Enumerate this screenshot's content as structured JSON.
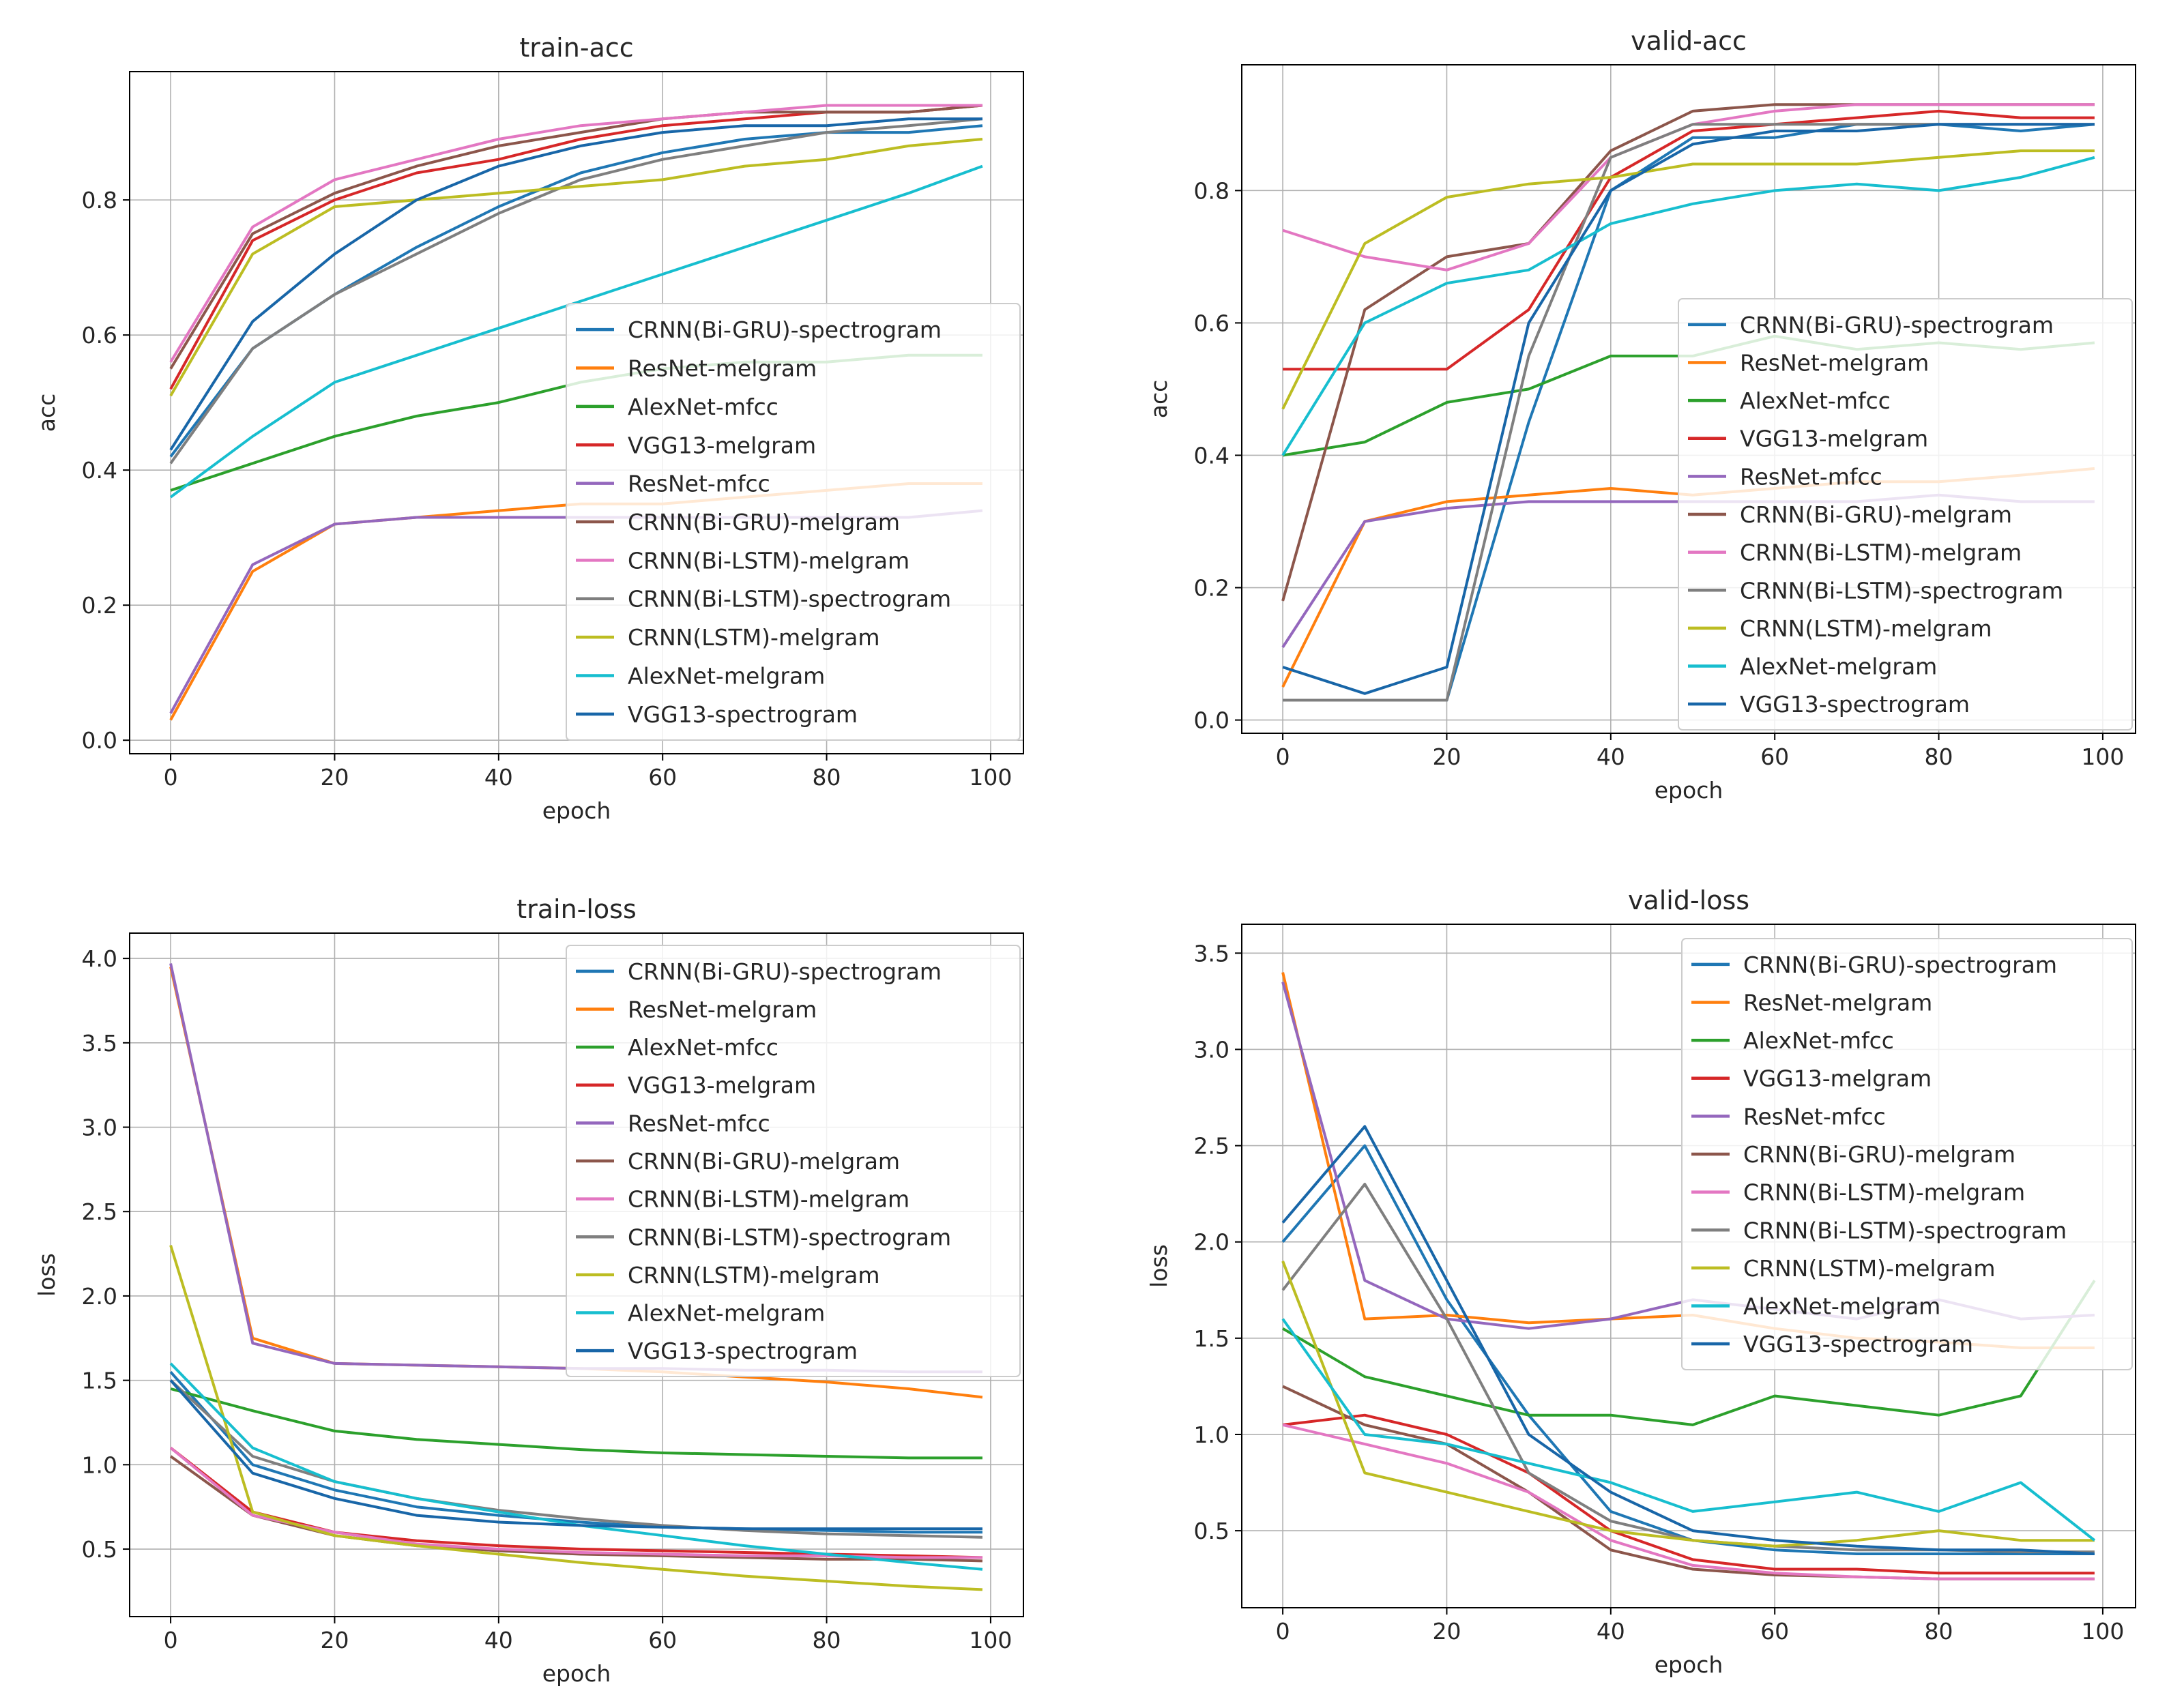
{
  "figure": {
    "type": "line-grid",
    "rows": 2,
    "cols": 2
  },
  "colors": [
    "#1f77b4",
    "#ff7f0e",
    "#2ca02c",
    "#d62728",
    "#9467bd",
    "#8c564b",
    "#e377c2",
    "#7f7f7f",
    "#bcbd22",
    "#17becf",
    "#1866a8"
  ],
  "chart_data": [
    {
      "type": "line",
      "title": "train-acc",
      "xlabel": "epoch",
      "ylabel": "acc",
      "xlim": [
        -5,
        104
      ],
      "ylim": [
        -0.02,
        0.99
      ],
      "xticks": [
        0,
        20,
        40,
        60,
        80,
        100
      ],
      "xtick_labels": [
        "0",
        "20",
        "40",
        "60",
        "80",
        "100"
      ],
      "yticks": [
        0.0,
        0.2,
        0.4,
        0.6,
        0.8
      ],
      "ytick_labels": [
        "0.0",
        "0.2",
        "0.4",
        "0.6",
        "0.8"
      ],
      "grid": true,
      "legend_position": "center-right",
      "series": [
        {
          "name": "CRNN(Bi-GRU)-spectrogram",
          "values": [
            0.42,
            0.58,
            0.66,
            0.73,
            0.79,
            0.84,
            0.87,
            0.89,
            0.9,
            0.9,
            0.91
          ]
        },
        {
          "name": "ResNet-melgram",
          "values": [
            0.03,
            0.25,
            0.32,
            0.33,
            0.34,
            0.35,
            0.35,
            0.36,
            0.37,
            0.38,
            0.38
          ]
        },
        {
          "name": "AlexNet-mfcc",
          "values": [
            0.37,
            0.41,
            0.45,
            0.48,
            0.5,
            0.53,
            0.55,
            0.56,
            0.56,
            0.57,
            0.57
          ]
        },
        {
          "name": "VGG13-melgram",
          "values": [
            0.52,
            0.74,
            0.8,
            0.84,
            0.86,
            0.89,
            0.91,
            0.92,
            0.93,
            0.93,
            0.94
          ]
        },
        {
          "name": "ResNet-mfcc",
          "values": [
            0.04,
            0.26,
            0.32,
            0.33,
            0.33,
            0.33,
            0.33,
            0.33,
            0.33,
            0.33,
            0.34
          ]
        },
        {
          "name": "CRNN(Bi-GRU)-melgram",
          "values": [
            0.55,
            0.75,
            0.81,
            0.85,
            0.88,
            0.9,
            0.92,
            0.93,
            0.93,
            0.93,
            0.94
          ]
        },
        {
          "name": "CRNN(Bi-LSTM)-melgram",
          "values": [
            0.56,
            0.76,
            0.83,
            0.86,
            0.89,
            0.91,
            0.92,
            0.93,
            0.94,
            0.94,
            0.94
          ]
        },
        {
          "name": "CRNN(Bi-LSTM)-spectrogram",
          "values": [
            0.41,
            0.58,
            0.66,
            0.72,
            0.78,
            0.83,
            0.86,
            0.88,
            0.9,
            0.91,
            0.92
          ]
        },
        {
          "name": "CRNN(LSTM)-melgram",
          "values": [
            0.51,
            0.72,
            0.79,
            0.8,
            0.81,
            0.82,
            0.83,
            0.85,
            0.86,
            0.88,
            0.89
          ]
        },
        {
          "name": "AlexNet-melgram",
          "values": [
            0.36,
            0.45,
            0.53,
            0.57,
            0.61,
            0.65,
            0.69,
            0.73,
            0.77,
            0.81,
            0.85
          ]
        },
        {
          "name": "VGG13-spectrogram",
          "values": [
            0.43,
            0.62,
            0.72,
            0.8,
            0.85,
            0.88,
            0.9,
            0.91,
            0.91,
            0.92,
            0.92
          ]
        }
      ],
      "x": [
        0,
        10,
        20,
        30,
        40,
        50,
        60,
        70,
        80,
        90,
        99
      ]
    },
    {
      "type": "line",
      "title": "valid-acc",
      "xlabel": "epoch",
      "ylabel": "acc",
      "xlim": [
        -5,
        104
      ],
      "ylim": [
        -0.02,
        0.99
      ],
      "xticks": [
        0,
        20,
        40,
        60,
        80,
        100
      ],
      "xtick_labels": [
        "0",
        "20",
        "40",
        "60",
        "80",
        "100"
      ],
      "yticks": [
        0.0,
        0.2,
        0.4,
        0.6,
        0.8
      ],
      "ytick_labels": [
        "0.0",
        "0.2",
        "0.4",
        "0.6",
        "0.8"
      ],
      "grid": true,
      "legend_position": "center-right",
      "series": [
        {
          "name": "CRNN(Bi-GRU)-spectrogram",
          "values": [
            0.03,
            0.03,
            0.03,
            0.45,
            0.8,
            0.88,
            0.88,
            0.9,
            0.9,
            0.89,
            0.9
          ]
        },
        {
          "name": "ResNet-melgram",
          "values": [
            0.05,
            0.3,
            0.33,
            0.34,
            0.35,
            0.34,
            0.35,
            0.36,
            0.36,
            0.37,
            0.38
          ]
        },
        {
          "name": "AlexNet-mfcc",
          "values": [
            0.4,
            0.42,
            0.48,
            0.5,
            0.55,
            0.55,
            0.58,
            0.56,
            0.57,
            0.56,
            0.57
          ]
        },
        {
          "name": "VGG13-melgram",
          "values": [
            0.53,
            0.53,
            0.53,
            0.62,
            0.82,
            0.89,
            0.9,
            0.91,
            0.92,
            0.91,
            0.91
          ]
        },
        {
          "name": "ResNet-mfcc",
          "values": [
            0.11,
            0.3,
            0.32,
            0.33,
            0.33,
            0.33,
            0.33,
            0.33,
            0.34,
            0.33,
            0.33
          ]
        },
        {
          "name": "CRNN(Bi-GRU)-melgram",
          "values": [
            0.18,
            0.62,
            0.7,
            0.72,
            0.86,
            0.92,
            0.93,
            0.93,
            0.93,
            0.93,
            0.93
          ]
        },
        {
          "name": "CRNN(Bi-LSTM)-melgram",
          "values": [
            0.74,
            0.7,
            0.68,
            0.72,
            0.85,
            0.9,
            0.92,
            0.93,
            0.93,
            0.93,
            0.93
          ]
        },
        {
          "name": "CRNN(Bi-LSTM)-spectrogram",
          "values": [
            0.03,
            0.03,
            0.03,
            0.55,
            0.85,
            0.9,
            0.9,
            0.9,
            0.9,
            0.9,
            0.9
          ]
        },
        {
          "name": "CRNN(LSTM)-melgram",
          "values": [
            0.47,
            0.72,
            0.79,
            0.81,
            0.82,
            0.84,
            0.84,
            0.84,
            0.85,
            0.86,
            0.86
          ]
        },
        {
          "name": "AlexNet-melgram",
          "values": [
            0.4,
            0.6,
            0.66,
            0.68,
            0.75,
            0.78,
            0.8,
            0.81,
            0.8,
            0.82,
            0.85
          ]
        },
        {
          "name": "VGG13-spectrogram",
          "values": [
            0.08,
            0.04,
            0.08,
            0.6,
            0.8,
            0.87,
            0.89,
            0.89,
            0.9,
            0.9,
            0.9
          ]
        }
      ],
      "x": [
        0,
        10,
        20,
        30,
        40,
        50,
        60,
        70,
        80,
        90,
        99
      ]
    },
    {
      "type": "line",
      "title": "train-loss",
      "xlabel": "epoch",
      "ylabel": "loss",
      "xlim": [
        -5,
        104
      ],
      "ylim": [
        0.1,
        4.15
      ],
      "xticks": [
        0,
        20,
        40,
        60,
        80,
        100
      ],
      "xtick_labels": [
        "0",
        "20",
        "40",
        "60",
        "80",
        "100"
      ],
      "yticks": [
        0.5,
        1.0,
        1.5,
        2.0,
        2.5,
        3.0,
        3.5,
        4.0
      ],
      "ytick_labels": [
        "0.5",
        "1.0",
        "1.5",
        "2.0",
        "2.5",
        "3.0",
        "3.5",
        "4.0"
      ],
      "grid": true,
      "legend_position": "top-right",
      "series": [
        {
          "name": "CRNN(Bi-GRU)-spectrogram",
          "values": [
            1.55,
            1.0,
            0.85,
            0.75,
            0.7,
            0.66,
            0.63,
            0.62,
            0.61,
            0.6,
            0.6
          ]
        },
        {
          "name": "ResNet-melgram",
          "values": [
            3.95,
            1.75,
            1.6,
            1.59,
            1.58,
            1.57,
            1.55,
            1.52,
            1.49,
            1.45,
            1.4
          ]
        },
        {
          "name": "AlexNet-mfcc",
          "values": [
            1.45,
            1.32,
            1.2,
            1.15,
            1.12,
            1.09,
            1.07,
            1.06,
            1.05,
            1.04,
            1.04
          ]
        },
        {
          "name": "VGG13-melgram",
          "values": [
            1.1,
            0.72,
            0.6,
            0.55,
            0.52,
            0.5,
            0.49,
            0.48,
            0.47,
            0.46,
            0.45
          ]
        },
        {
          "name": "ResNet-mfcc",
          "values": [
            3.97,
            1.72,
            1.6,
            1.59,
            1.58,
            1.57,
            1.57,
            1.56,
            1.56,
            1.55,
            1.55
          ]
        },
        {
          "name": "CRNN(Bi-GRU)-melgram",
          "values": [
            1.05,
            0.7,
            0.58,
            0.52,
            0.49,
            0.47,
            0.46,
            0.45,
            0.44,
            0.44,
            0.43
          ]
        },
        {
          "name": "CRNN(Bi-LSTM)-melgram",
          "values": [
            1.1,
            0.7,
            0.6,
            0.53,
            0.5,
            0.48,
            0.47,
            0.46,
            0.46,
            0.45,
            0.45
          ]
        },
        {
          "name": "CRNN(Bi-LSTM)-spectrogram",
          "values": [
            1.5,
            1.05,
            0.9,
            0.8,
            0.73,
            0.68,
            0.64,
            0.61,
            0.59,
            0.58,
            0.57
          ]
        },
        {
          "name": "CRNN(LSTM)-melgram",
          "values": [
            2.3,
            0.72,
            0.58,
            0.52,
            0.47,
            0.42,
            0.38,
            0.34,
            0.31,
            0.28,
            0.26
          ]
        },
        {
          "name": "AlexNet-melgram",
          "values": [
            1.6,
            1.1,
            0.9,
            0.8,
            0.72,
            0.64,
            0.58,
            0.52,
            0.47,
            0.42,
            0.38
          ]
        },
        {
          "name": "VGG13-spectrogram",
          "values": [
            1.5,
            0.95,
            0.8,
            0.7,
            0.66,
            0.64,
            0.63,
            0.62,
            0.62,
            0.62,
            0.62
          ]
        }
      ],
      "x": [
        0,
        10,
        20,
        30,
        40,
        50,
        60,
        70,
        80,
        90,
        99
      ]
    },
    {
      "type": "line",
      "title": "valid-loss",
      "xlabel": "epoch",
      "ylabel": "loss",
      "xlim": [
        -5,
        104
      ],
      "ylim": [
        0.1,
        3.65
      ],
      "xticks": [
        0,
        20,
        40,
        60,
        80,
        100
      ],
      "xtick_labels": [
        "0",
        "20",
        "40",
        "60",
        "80",
        "100"
      ],
      "yticks": [
        0.5,
        1.0,
        1.5,
        2.0,
        2.5,
        3.0,
        3.5
      ],
      "ytick_labels": [
        "0.5",
        "1.0",
        "1.5",
        "2.0",
        "2.5",
        "3.0",
        "3.5"
      ],
      "grid": true,
      "legend_position": "top-right",
      "series": [
        {
          "name": "CRNN(Bi-GRU)-spectrogram",
          "values": [
            2.0,
            2.5,
            1.7,
            1.1,
            0.6,
            0.45,
            0.4,
            0.38,
            0.38,
            0.38,
            0.38
          ]
        },
        {
          "name": "ResNet-melgram",
          "values": [
            3.4,
            1.6,
            1.62,
            1.58,
            1.6,
            1.62,
            1.55,
            1.5,
            1.48,
            1.45,
            1.45
          ]
        },
        {
          "name": "AlexNet-mfcc",
          "values": [
            1.55,
            1.3,
            1.2,
            1.1,
            1.1,
            1.05,
            1.2,
            1.15,
            1.1,
            1.2,
            1.8
          ]
        },
        {
          "name": "VGG13-melgram",
          "values": [
            1.05,
            1.1,
            1.0,
            0.8,
            0.5,
            0.35,
            0.3,
            0.3,
            0.28,
            0.28,
            0.28
          ]
        },
        {
          "name": "ResNet-mfcc",
          "values": [
            3.35,
            1.8,
            1.6,
            1.55,
            1.6,
            1.7,
            1.65,
            1.6,
            1.7,
            1.6,
            1.62
          ]
        },
        {
          "name": "CRNN(Bi-GRU)-melgram",
          "values": [
            1.25,
            1.05,
            0.95,
            0.7,
            0.4,
            0.3,
            0.27,
            0.26,
            0.25,
            0.25,
            0.25
          ]
        },
        {
          "name": "CRNN(Bi-LSTM)-melgram",
          "values": [
            1.05,
            0.95,
            0.85,
            0.7,
            0.45,
            0.32,
            0.28,
            0.26,
            0.25,
            0.25,
            0.25
          ]
        },
        {
          "name": "CRNN(Bi-LSTM)-spectrogram",
          "values": [
            1.75,
            2.3,
            1.6,
            0.8,
            0.55,
            0.45,
            0.42,
            0.4,
            0.4,
            0.39,
            0.39
          ]
        },
        {
          "name": "CRNN(LSTM)-melgram",
          "values": [
            1.9,
            0.8,
            0.7,
            0.6,
            0.5,
            0.45,
            0.42,
            0.45,
            0.5,
            0.45,
            0.45
          ]
        },
        {
          "name": "AlexNet-melgram",
          "values": [
            1.6,
            1.0,
            0.95,
            0.85,
            0.75,
            0.6,
            0.65,
            0.7,
            0.6,
            0.75,
            0.45
          ]
        },
        {
          "name": "VGG13-spectrogram",
          "values": [
            2.1,
            2.6,
            1.8,
            1.0,
            0.7,
            0.5,
            0.45,
            0.42,
            0.4,
            0.4,
            0.38
          ]
        }
      ],
      "x": [
        0,
        10,
        20,
        30,
        40,
        50,
        60,
        70,
        80,
        90,
        99
      ]
    }
  ]
}
